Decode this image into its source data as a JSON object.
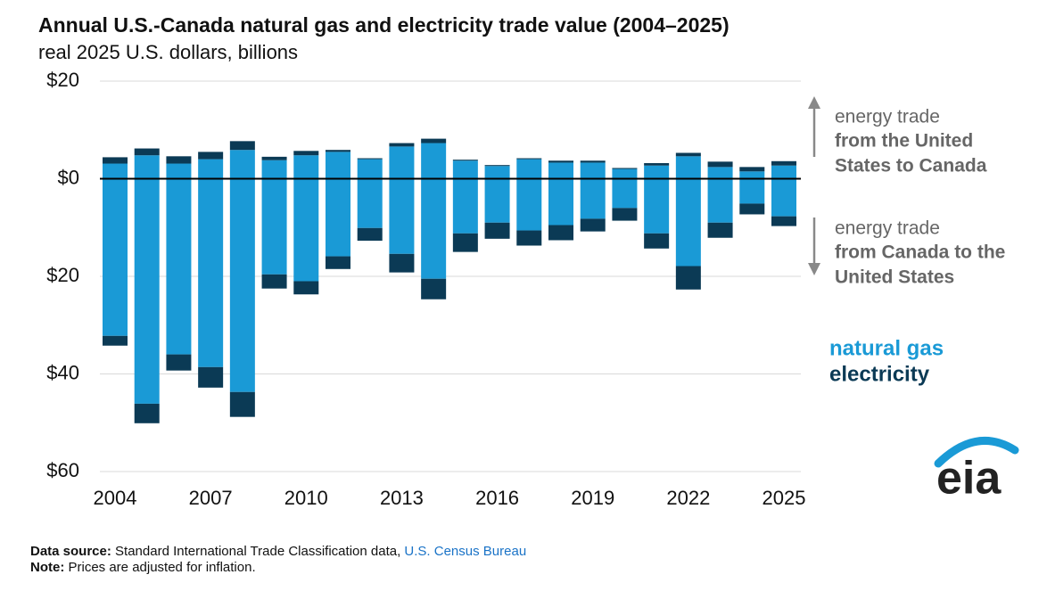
{
  "chart_data": {
    "type": "bar",
    "title": "Annual U.S.-Canada natural gas and electricity trade value (2004–2025)",
    "subtitle": "real 2025 U.S. dollars, billions",
    "categories": [
      2004,
      null,
      null,
      2007,
      null,
      null,
      2010,
      null,
      null,
      2013,
      null,
      null,
      2016,
      null,
      null,
      2019,
      null,
      null,
      2022,
      null,
      null,
      2025
    ],
    "series": [
      {
        "name": "natural gas",
        "color": "#1a9ad6",
        "values": [
          3.1,
          4.8,
          3.1,
          4.0,
          5.9,
          3.8,
          4.8,
          5.5,
          4.0,
          6.6,
          7.3,
          3.7,
          2.6,
          4.0,
          3.3,
          3.3,
          2.0,
          2.7,
          4.6,
          2.4,
          1.5,
          2.7
        ],
        "imports": [
          -32.2,
          -46.1,
          -36.0,
          -38.6,
          -43.7,
          -19.6,
          -21.0,
          -15.9,
          -10.1,
          -15.4,
          -20.5,
          -11.2,
          -9.0,
          -10.6,
          -9.5,
          -8.2,
          -6.0,
          -11.2,
          -17.9,
          -9.0,
          -5.1,
          -7.7
        ]
      },
      {
        "name": "electricity",
        "color": "#0b3a55",
        "values": [
          1.3,
          1.4,
          1.5,
          1.5,
          1.8,
          0.7,
          0.9,
          0.4,
          0.2,
          0.7,
          0.9,
          0.2,
          0.2,
          0.2,
          0.4,
          0.4,
          0.2,
          0.5,
          0.7,
          1.1,
          0.9,
          0.9
        ],
        "imports": [
          -2.0,
          -4.0,
          -3.3,
          -4.2,
          -5.1,
          -2.9,
          -2.7,
          -2.6,
          -2.6,
          -3.8,
          -4.2,
          -3.8,
          -3.3,
          -3.1,
          -3.1,
          -2.6,
          -2.6,
          -3.1,
          -4.8,
          -3.1,
          -2.2,
          -2.0
        ]
      }
    ],
    "ylim": [
      -60,
      20
    ],
    "yticks": [
      {
        "value": -60,
        "label": "$60"
      },
      {
        "value": -40,
        "label": "$40"
      },
      {
        "value": -20,
        "label": "$20"
      },
      {
        "value": 0,
        "label": "$0"
      },
      {
        "value": 20,
        "label": "$20"
      }
    ],
    "grid": true,
    "annotations": [
      {
        "lines": [
          "energy trade",
          "from the United",
          "States to Canada"
        ]
      },
      {
        "lines": [
          "energy trade",
          "from Canada to the",
          "United States"
        ]
      }
    ]
  },
  "footer": {
    "source_label": "Data source:",
    "source_text": "Standard International Trade Classification data,",
    "source_link": "U.S. Census Bureau",
    "note_label": "Note:",
    "note_text": "Prices are adjusted for inflation."
  },
  "logo": "eia"
}
